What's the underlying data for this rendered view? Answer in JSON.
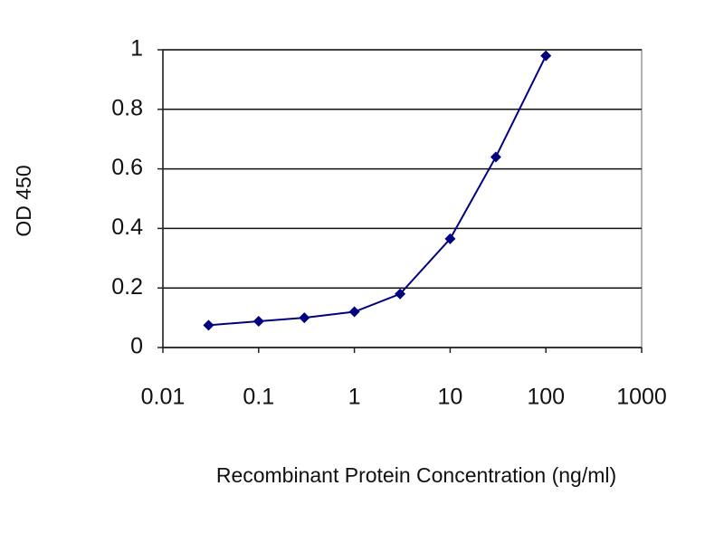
{
  "chart_data": {
    "type": "line",
    "x_label": "Recombinant Protein Concentration (ng/ml)",
    "y_label": "OD 450",
    "x": [
      0.03,
      0.1,
      0.3,
      1,
      3,
      10,
      30,
      100
    ],
    "series": [
      {
        "color": "#000080",
        "values": [
          0.075,
          0.088,
          0.1,
          0.12,
          0.18,
          0.365,
          0.64,
          0.98
        ]
      }
    ],
    "xscale": "log",
    "xlim": [
      0.01,
      1000
    ],
    "xticks": [
      0.01,
      0.1,
      1,
      10,
      100,
      1000
    ],
    "ylim": [
      0,
      1
    ],
    "yticks": [
      0,
      0.2,
      0.4,
      0.6,
      0.8,
      1
    ],
    "grid": true
  }
}
